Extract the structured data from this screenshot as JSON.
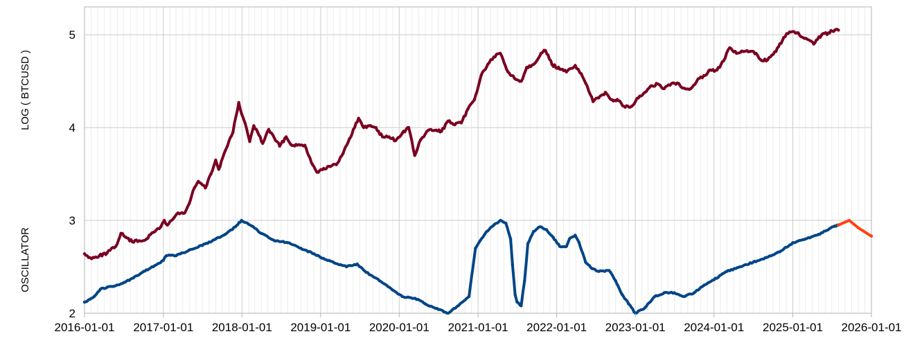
{
  "chart_data": {
    "type": "scatter",
    "ylabels": [
      "LOG ( BTCUSD )",
      "OSCILLATOR"
    ],
    "x_ticks": [
      "2016-01-01",
      "2017-01-01",
      "2018-01-01",
      "2019-01-01",
      "2020-01-01",
      "2021-01-01",
      "2022-01-01",
      "2023-01-01",
      "2024-01-01",
      "2025-01-01",
      "2026-01-01"
    ],
    "y_ticks": [
      2,
      3,
      4,
      5
    ],
    "xlim": [
      "2016-01-01",
      "2026-01-01"
    ],
    "ylim": [
      2.0,
      5.3
    ],
    "grid": true,
    "colors": {
      "price": "#7a0021",
      "oscillator": "#004586",
      "projection": "#ff420e",
      "grid": "#cccccc"
    },
    "series": [
      {
        "role": "price",
        "points": [
          [
            "2016-01-01",
            2.64
          ],
          [
            "2016-01-20",
            2.6
          ],
          [
            "2016-02-10",
            2.6
          ],
          [
            "2016-03-10",
            2.62
          ],
          [
            "2016-04-15",
            2.65
          ],
          [
            "2016-05-25",
            2.72
          ],
          [
            "2016-06-18",
            2.86
          ],
          [
            "2016-07-10",
            2.82
          ],
          [
            "2016-08-10",
            2.77
          ],
          [
            "2016-09-10",
            2.78
          ],
          [
            "2016-10-15",
            2.8
          ],
          [
            "2016-11-15",
            2.87
          ],
          [
            "2016-12-20",
            2.93
          ],
          [
            "2017-01-05",
            3.0
          ],
          [
            "2017-01-20",
            2.95
          ],
          [
            "2017-02-20",
            3.03
          ],
          [
            "2017-03-10",
            3.08
          ],
          [
            "2017-04-10",
            3.08
          ],
          [
            "2017-05-01",
            3.18
          ],
          [
            "2017-05-25",
            3.35
          ],
          [
            "2017-06-12",
            3.42
          ],
          [
            "2017-07-15",
            3.35
          ],
          [
            "2017-08-10",
            3.5
          ],
          [
            "2017-09-01",
            3.65
          ],
          [
            "2017-09-15",
            3.55
          ],
          [
            "2017-10-15",
            3.75
          ],
          [
            "2017-11-20",
            3.95
          ],
          [
            "2017-12-17",
            4.27
          ],
          [
            "2017-12-30",
            4.15
          ],
          [
            "2018-01-15",
            4.05
          ],
          [
            "2018-02-06",
            3.85
          ],
          [
            "2018-02-25",
            4.02
          ],
          [
            "2018-03-15",
            3.95
          ],
          [
            "2018-04-07",
            3.83
          ],
          [
            "2018-05-05",
            3.98
          ],
          [
            "2018-06-25",
            3.8
          ],
          [
            "2018-07-25",
            3.9
          ],
          [
            "2018-08-15",
            3.82
          ],
          [
            "2018-09-15",
            3.81
          ],
          [
            "2018-10-20",
            3.81
          ],
          [
            "2018-11-25",
            3.6
          ],
          [
            "2018-12-15",
            3.52
          ],
          [
            "2019-01-15",
            3.56
          ],
          [
            "2019-02-15",
            3.58
          ],
          [
            "2019-03-15",
            3.6
          ],
          [
            "2019-04-15",
            3.72
          ],
          [
            "2019-05-15",
            3.88
          ],
          [
            "2019-06-26",
            4.1
          ],
          [
            "2019-07-20",
            4.0
          ],
          [
            "2019-08-15",
            4.02
          ],
          [
            "2019-09-15",
            4.0
          ],
          [
            "2019-10-15",
            3.9
          ],
          [
            "2019-11-15",
            3.9
          ],
          [
            "2019-12-15",
            3.86
          ],
          [
            "2020-01-15",
            3.94
          ],
          [
            "2020-02-14",
            4.0
          ],
          [
            "2020-03-13",
            3.7
          ],
          [
            "2020-04-10",
            3.87
          ],
          [
            "2020-05-15",
            3.97
          ],
          [
            "2020-06-15",
            3.97
          ],
          [
            "2020-07-15",
            3.96
          ],
          [
            "2020-08-15",
            4.07
          ],
          [
            "2020-09-15",
            4.03
          ],
          [
            "2020-10-15",
            4.05
          ],
          [
            "2020-11-15",
            4.2
          ],
          [
            "2020-12-15",
            4.3
          ],
          [
            "2021-01-15",
            4.56
          ],
          [
            "2021-02-15",
            4.68
          ],
          [
            "2021-03-15",
            4.76
          ],
          [
            "2021-04-14",
            4.8
          ],
          [
            "2021-05-20",
            4.6
          ],
          [
            "2021-06-25",
            4.52
          ],
          [
            "2021-07-20",
            4.5
          ],
          [
            "2021-08-15",
            4.65
          ],
          [
            "2021-09-15",
            4.68
          ],
          [
            "2021-10-20",
            4.8
          ],
          [
            "2021-11-10",
            4.83
          ],
          [
            "2021-12-10",
            4.68
          ],
          [
            "2022-01-15",
            4.63
          ],
          [
            "2022-02-15",
            4.6
          ],
          [
            "2022-03-28",
            4.67
          ],
          [
            "2022-04-25",
            4.58
          ],
          [
            "2022-05-15",
            4.48
          ],
          [
            "2022-06-19",
            4.28
          ],
          [
            "2022-07-15",
            4.32
          ],
          [
            "2022-08-15",
            4.38
          ],
          [
            "2022-09-15",
            4.3
          ],
          [
            "2022-10-15",
            4.29
          ],
          [
            "2022-11-15",
            4.22
          ],
          [
            "2022-12-15",
            4.23
          ],
          [
            "2023-01-15",
            4.32
          ],
          [
            "2023-02-15",
            4.38
          ],
          [
            "2023-03-20",
            4.45
          ],
          [
            "2023-04-15",
            4.47
          ],
          [
            "2023-05-15",
            4.42
          ],
          [
            "2023-06-25",
            4.48
          ],
          [
            "2023-07-15",
            4.48
          ],
          [
            "2023-08-20",
            4.42
          ],
          [
            "2023-09-15",
            4.42
          ],
          [
            "2023-10-25",
            4.53
          ],
          [
            "2023-11-15",
            4.56
          ],
          [
            "2023-12-15",
            4.62
          ],
          [
            "2024-01-15",
            4.62
          ],
          [
            "2024-02-15",
            4.72
          ],
          [
            "2024-03-14",
            4.86
          ],
          [
            "2024-04-15",
            4.8
          ],
          [
            "2024-05-15",
            4.82
          ],
          [
            "2024-06-15",
            4.82
          ],
          [
            "2024-07-15",
            4.8
          ],
          [
            "2024-08-05",
            4.73
          ],
          [
            "2024-09-06",
            4.73
          ],
          [
            "2024-10-15",
            4.82
          ],
          [
            "2024-11-20",
            4.97
          ],
          [
            "2024-12-17",
            5.03
          ],
          [
            "2025-01-20",
            5.02
          ],
          [
            "2025-02-25",
            4.96
          ],
          [
            "2025-04-08",
            4.9
          ],
          [
            "2025-05-15",
            5.0
          ],
          [
            "2025-06-15",
            5.02
          ],
          [
            "2025-07-15",
            5.05
          ],
          [
            "2025-08-01",
            5.05
          ]
        ]
      },
      {
        "role": "oscillator",
        "points": [
          [
            "2016-01-01",
            2.12
          ],
          [
            "2016-02-15",
            2.18
          ],
          [
            "2016-03-15",
            2.26
          ],
          [
            "2016-04-15",
            2.28
          ],
          [
            "2016-05-15",
            2.29
          ],
          [
            "2016-07-01",
            2.33
          ],
          [
            "2016-08-15",
            2.38
          ],
          [
            "2016-10-01",
            2.45
          ],
          [
            "2016-11-15",
            2.5
          ],
          [
            "2017-01-01",
            2.57
          ],
          [
            "2017-01-15",
            2.62
          ],
          [
            "2017-03-01",
            2.62
          ],
          [
            "2017-05-01",
            2.68
          ],
          [
            "2017-07-01",
            2.73
          ],
          [
            "2017-09-01",
            2.8
          ],
          [
            "2017-10-15",
            2.85
          ],
          [
            "2017-12-01",
            2.93
          ],
          [
            "2017-12-30",
            3.0
          ],
          [
            "2018-02-15",
            2.94
          ],
          [
            "2018-04-01",
            2.86
          ],
          [
            "2018-06-01",
            2.78
          ],
          [
            "2018-08-01",
            2.76
          ],
          [
            "2018-10-01",
            2.7
          ],
          [
            "2018-12-01",
            2.64
          ],
          [
            "2019-01-01",
            2.6
          ],
          [
            "2019-03-01",
            2.55
          ],
          [
            "2019-05-01",
            2.5
          ],
          [
            "2019-06-20",
            2.53
          ],
          [
            "2019-08-01",
            2.44
          ],
          [
            "2019-10-01",
            2.35
          ],
          [
            "2019-12-01",
            2.25
          ],
          [
            "2020-01-15",
            2.18
          ],
          [
            "2020-03-15",
            2.16
          ],
          [
            "2020-05-01",
            2.1
          ],
          [
            "2020-07-01",
            2.04
          ],
          [
            "2020-08-15",
            2.0
          ],
          [
            "2020-10-01",
            2.08
          ],
          [
            "2020-11-20",
            2.18
          ],
          [
            "2020-12-20",
            2.7
          ],
          [
            "2021-01-10",
            2.78
          ],
          [
            "2021-02-10",
            2.88
          ],
          [
            "2021-03-15",
            2.95
          ],
          [
            "2021-04-15",
            3.0
          ],
          [
            "2021-05-10",
            2.97
          ],
          [
            "2021-06-01",
            2.8
          ],
          [
            "2021-06-10",
            2.52
          ],
          [
            "2021-06-22",
            2.2
          ],
          [
            "2021-07-01",
            2.12
          ],
          [
            "2021-07-20",
            2.08
          ],
          [
            "2021-08-05",
            2.35
          ],
          [
            "2021-08-20",
            2.75
          ],
          [
            "2021-09-15",
            2.88
          ],
          [
            "2021-10-15",
            2.93
          ],
          [
            "2021-11-15",
            2.9
          ],
          [
            "2021-12-15",
            2.82
          ],
          [
            "2022-01-15",
            2.72
          ],
          [
            "2022-02-15",
            2.72
          ],
          [
            "2022-03-01",
            2.8
          ],
          [
            "2022-03-28",
            2.84
          ],
          [
            "2022-04-15",
            2.76
          ],
          [
            "2022-05-15",
            2.55
          ],
          [
            "2022-06-15",
            2.48
          ],
          [
            "2022-07-15",
            2.45
          ],
          [
            "2022-09-01",
            2.46
          ],
          [
            "2022-10-01",
            2.35
          ],
          [
            "2022-11-01",
            2.2
          ],
          [
            "2022-12-01",
            2.1
          ],
          [
            "2023-01-01",
            2.0
          ],
          [
            "2023-02-15",
            2.06
          ],
          [
            "2023-04-01",
            2.18
          ],
          [
            "2023-05-15",
            2.22
          ],
          [
            "2023-07-01",
            2.22
          ],
          [
            "2023-08-15",
            2.18
          ],
          [
            "2023-10-01",
            2.22
          ],
          [
            "2023-11-15",
            2.3
          ],
          [
            "2024-01-01",
            2.36
          ],
          [
            "2024-03-01",
            2.45
          ],
          [
            "2024-05-01",
            2.5
          ],
          [
            "2024-07-01",
            2.55
          ],
          [
            "2024-09-01",
            2.6
          ],
          [
            "2024-11-01",
            2.66
          ],
          [
            "2025-01-01",
            2.76
          ],
          [
            "2025-03-01",
            2.8
          ],
          [
            "2025-05-01",
            2.85
          ],
          [
            "2025-07-15",
            2.94
          ],
          [
            "2025-08-01",
            2.95
          ]
        ]
      },
      {
        "role": "projection",
        "points": [
          [
            "2025-08-01",
            2.95
          ],
          [
            "2025-09-20",
            3.0
          ],
          [
            "2025-11-01",
            2.92
          ],
          [
            "2026-01-01",
            2.83
          ]
        ]
      }
    ]
  }
}
